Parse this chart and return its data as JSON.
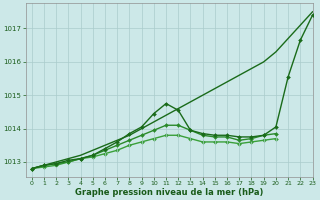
{
  "x": [
    0,
    1,
    2,
    3,
    4,
    5,
    6,
    7,
    8,
    9,
    10,
    11,
    12,
    13,
    14,
    15,
    16,
    17,
    18,
    19,
    20,
    21,
    22,
    23
  ],
  "series": [
    {
      "label": "line_top",
      "y": [
        1012.8,
        1012.9,
        1013.0,
        1013.1,
        1013.2,
        1013.35,
        1013.5,
        1013.65,
        1013.8,
        1014.0,
        1014.2,
        1014.4,
        1014.6,
        1014.8,
        1015.0,
        1015.2,
        1015.4,
        1015.6,
        1015.8,
        1016.0,
        1016.3,
        1016.7,
        1017.1,
        1017.5
      ],
      "color": "#1a6b1a",
      "linewidth": 1.0,
      "marker": null,
      "markersize": 0,
      "zorder": 4
    },
    {
      "label": "line_peak",
      "y": [
        1012.8,
        1012.9,
        1012.95,
        1013.05,
        1013.1,
        1013.2,
        1013.4,
        1013.6,
        1013.85,
        1014.05,
        1014.45,
        1014.75,
        1014.55,
        1013.95,
        1013.85,
        1013.8,
        1013.8,
        1013.75,
        1013.75,
        1013.8,
        1014.05,
        1015.55,
        1016.65,
        1017.4
      ],
      "color": "#1a6b1a",
      "linewidth": 1.0,
      "marker": "D",
      "markersize": 2.0,
      "zorder": 3
    },
    {
      "label": "line_mid1",
      "y": [
        1012.8,
        1012.9,
        1012.95,
        1013.0,
        1013.1,
        1013.2,
        1013.35,
        1013.5,
        1013.65,
        1013.8,
        1013.95,
        1014.1,
        1014.1,
        1013.95,
        1013.8,
        1013.75,
        1013.75,
        1013.65,
        1013.7,
        1013.8,
        1013.85,
        null,
        null,
        null
      ],
      "color": "#2a8a2a",
      "linewidth": 1.0,
      "marker": "D",
      "markersize": 2.0,
      "zorder": 2
    },
    {
      "label": "line_mid2",
      "y": [
        1012.8,
        1012.85,
        1012.9,
        1013.0,
        1013.1,
        1013.15,
        1013.25,
        1013.35,
        1013.5,
        1013.6,
        1013.7,
        1013.8,
        1013.8,
        1013.7,
        1013.6,
        1013.6,
        1013.6,
        1013.55,
        1013.6,
        1013.65,
        1013.7,
        null,
        null,
        null
      ],
      "color": "#3aa03a",
      "linewidth": 1.0,
      "marker": "D",
      "markersize": 2.0,
      "zorder": 1
    }
  ],
  "xlim": [
    -0.5,
    23
  ],
  "ylim": [
    1012.55,
    1017.75
  ],
  "yticks": [
    1013,
    1014,
    1015,
    1016,
    1017
  ],
  "xticks": [
    0,
    1,
    2,
    3,
    4,
    5,
    6,
    7,
    8,
    9,
    10,
    11,
    12,
    13,
    14,
    15,
    16,
    17,
    18,
    19,
    20,
    21,
    22,
    23
  ],
  "xlabel": "Graphe pression niveau de la mer (hPa)",
  "background_color": "#cce8e8",
  "grid_color": "#aacccc",
  "tick_color": "#1a5c1a",
  "label_color": "#1a5c1a"
}
